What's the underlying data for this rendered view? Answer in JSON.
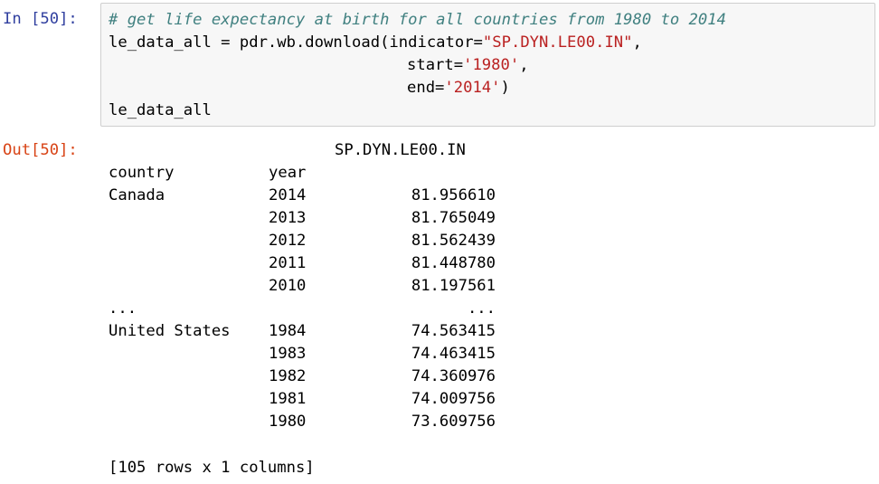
{
  "input_prompt": "In [50]:",
  "output_prompt": "Out[50]:",
  "code": {
    "comment": "# get life expectancy at birth for all countries from 1980 to 2014",
    "line2_prefix": "le_data_all = pdr.wb.download(indicator=",
    "indicator_value": "\"SP.DYN.LE00.IN\"",
    "line2_suffix": ",",
    "start_kw": "start=",
    "start_value": "'1980'",
    "start_suffix": ",",
    "end_kw": "end=",
    "end_value": "'2014'",
    "end_suffix": ")",
    "last_line": "le_data_all"
  },
  "output": {
    "column_header": "SP.DYN.LE00.IN",
    "index_names": [
      "country",
      "year"
    ],
    "rows": [
      {
        "country": "Canada",
        "year": "2014",
        "value": "81.956610"
      },
      {
        "country": "",
        "year": "2013",
        "value": "81.765049"
      },
      {
        "country": "",
        "year": "2012",
        "value": "81.562439"
      },
      {
        "country": "",
        "year": "2011",
        "value": "81.448780"
      },
      {
        "country": "",
        "year": "2010",
        "value": "81.197561"
      },
      {
        "country": "...",
        "year": "",
        "value": "..."
      },
      {
        "country": "United States",
        "year": "1984",
        "value": "74.563415"
      },
      {
        "country": "",
        "year": "1983",
        "value": "74.463415"
      },
      {
        "country": "",
        "year": "1982",
        "value": "74.360976"
      },
      {
        "country": "",
        "year": "1981",
        "value": "74.009756"
      },
      {
        "country": "",
        "year": "1980",
        "value": "73.609756"
      }
    ],
    "summary": "[105 rows x 1 columns]"
  }
}
